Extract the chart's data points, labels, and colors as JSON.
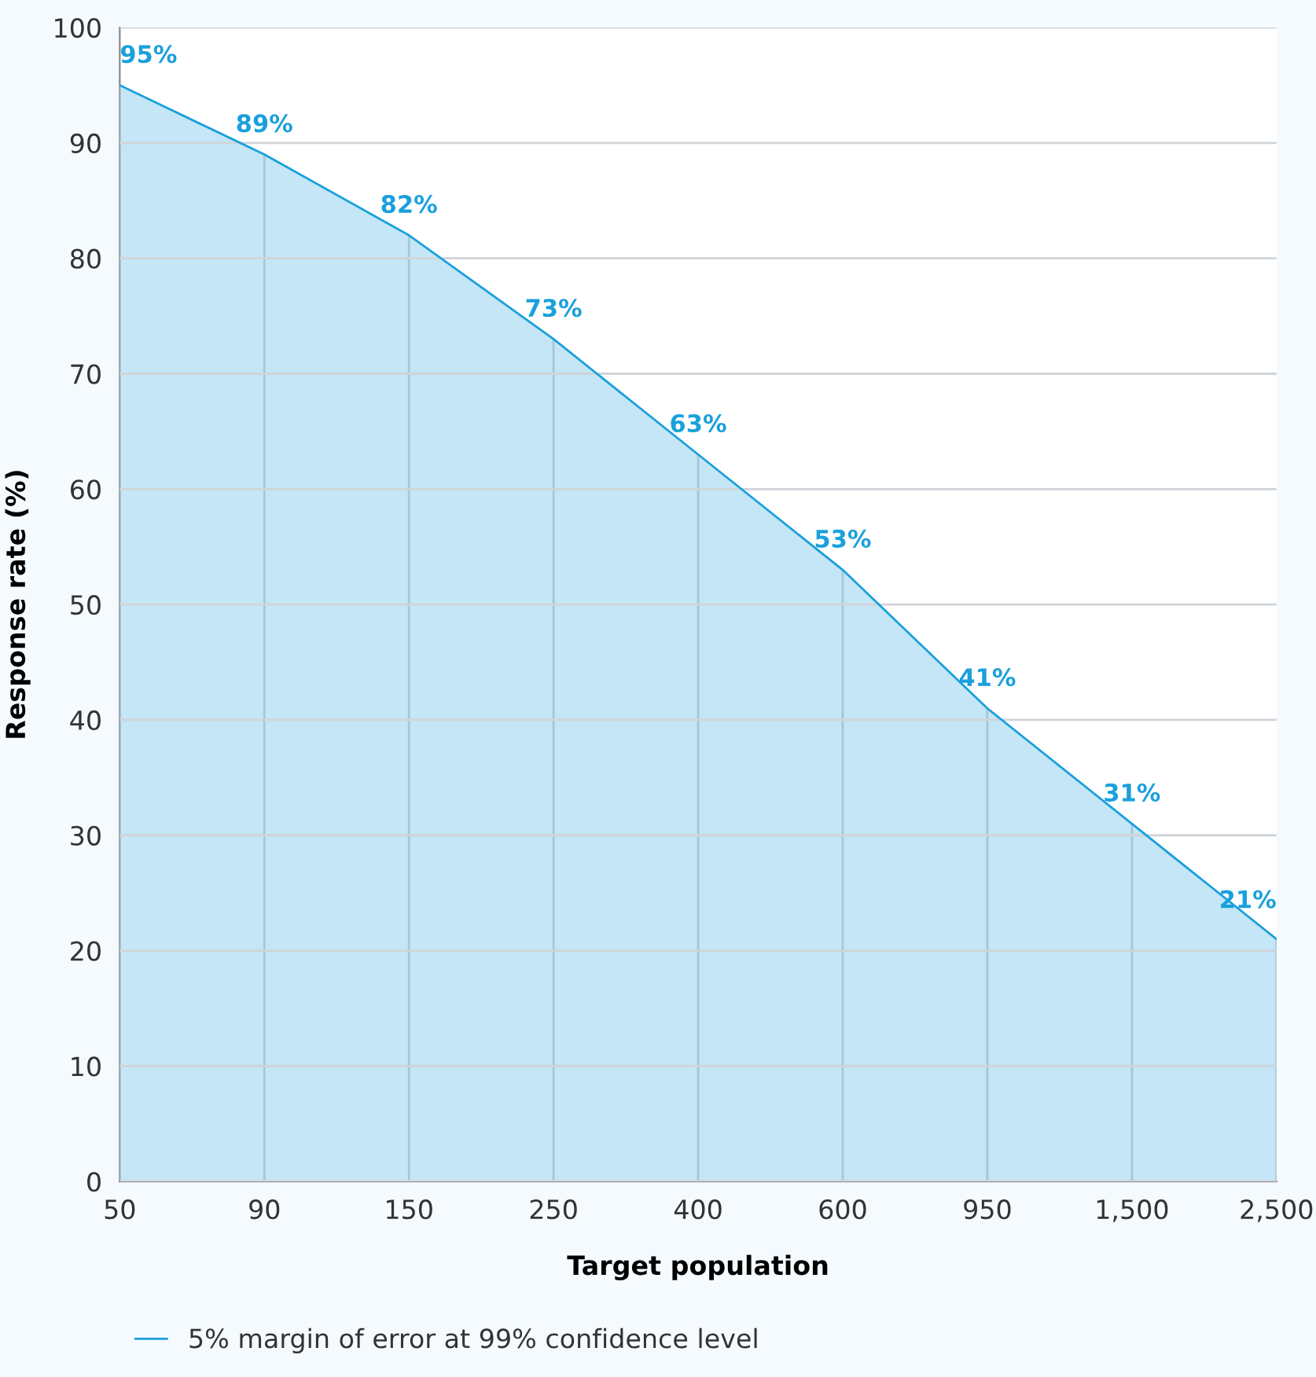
{
  "chart_data": {
    "type": "area",
    "xlabel": "Target population",
    "ylabel": "Response rate (%)",
    "categories": [
      "50",
      "90",
      "150",
      "250",
      "400",
      "600",
      "950",
      "1,500",
      "2,500"
    ],
    "series": [
      {
        "name": "5% margin of error at 99% confidence level",
        "color": "#1aa0dc",
        "values": [
          95,
          89,
          82,
          73,
          63,
          53,
          41,
          31,
          21
        ],
        "value_labels": [
          "95%",
          "89%",
          "82%",
          "73%",
          "63%",
          "53%",
          "41%",
          "31%",
          "21%"
        ]
      }
    ],
    "ylim": [
      0,
      100
    ],
    "yticks": [
      0,
      10,
      20,
      30,
      40,
      50,
      60,
      70,
      80,
      90,
      100
    ],
    "grid": true,
    "legend": "bottom"
  }
}
